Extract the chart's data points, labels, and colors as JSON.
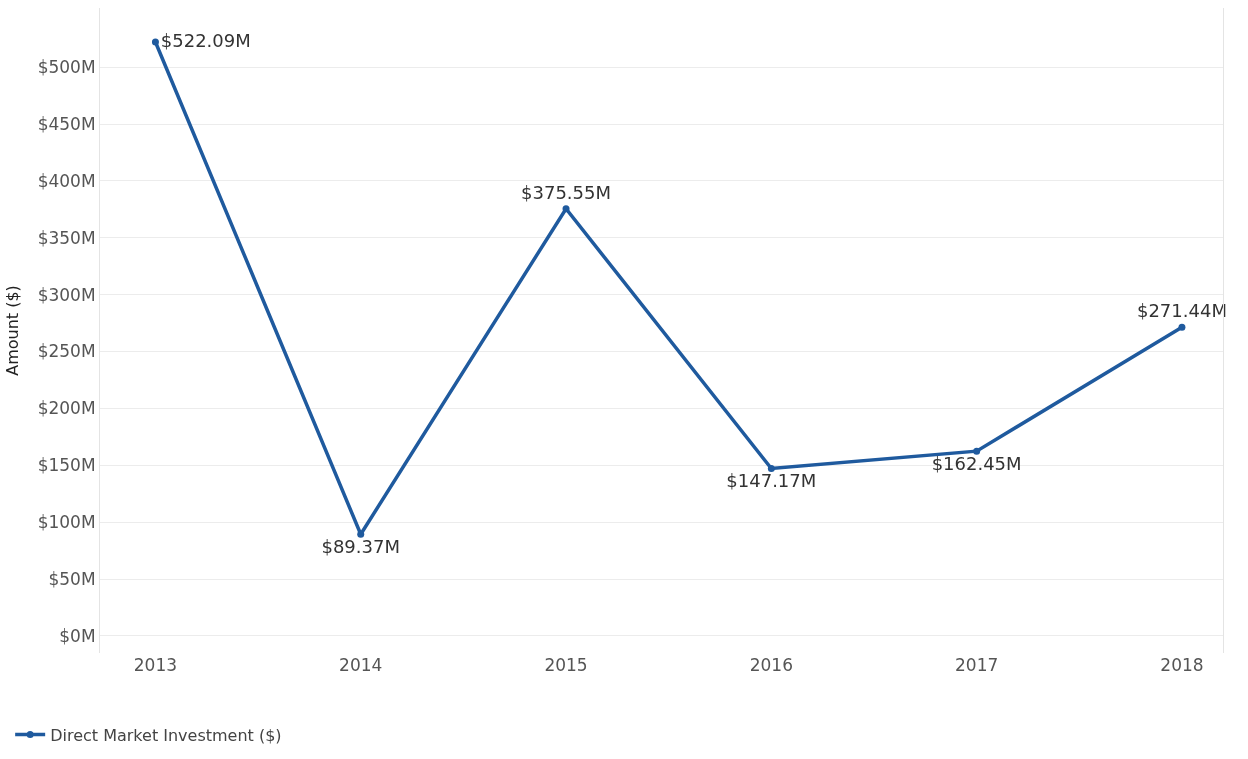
{
  "chart_data": {
    "type": "line",
    "ylabel": "Amount ($)",
    "categories": [
      "2013",
      "2014",
      "2015",
      "2016",
      "2017",
      "2018"
    ],
    "series": [
      {
        "name": "Direct Market Investment ($)",
        "color": "#1f5a9e",
        "values": [
          522.09,
          89.37,
          375.55,
          147.17,
          162.45,
          271.44
        ],
        "value_labels": [
          "$522.09M",
          "$89.37M",
          "$375.55M",
          "$147.17M",
          "$162.45M",
          "$271.44M"
        ]
      }
    ],
    "ylim": [
      -15,
      552
    ],
    "yticks": [
      {
        "value": 0,
        "label": "$0M"
      },
      {
        "value": 50,
        "label": "$50M"
      },
      {
        "value": 100,
        "label": "$100M"
      },
      {
        "value": 150,
        "label": "$150M"
      },
      {
        "value": 200,
        "label": "$200M"
      },
      {
        "value": 250,
        "label": "$250M"
      },
      {
        "value": 300,
        "label": "$300M"
      },
      {
        "value": 350,
        "label": "$350M"
      },
      {
        "value": 400,
        "label": "$400M"
      },
      {
        "value": 450,
        "label": "$450M"
      },
      {
        "value": 500,
        "label": "$500M"
      }
    ],
    "grid": "y",
    "legend": "bottom left",
    "marker": "circle",
    "line_style": "solid"
  }
}
